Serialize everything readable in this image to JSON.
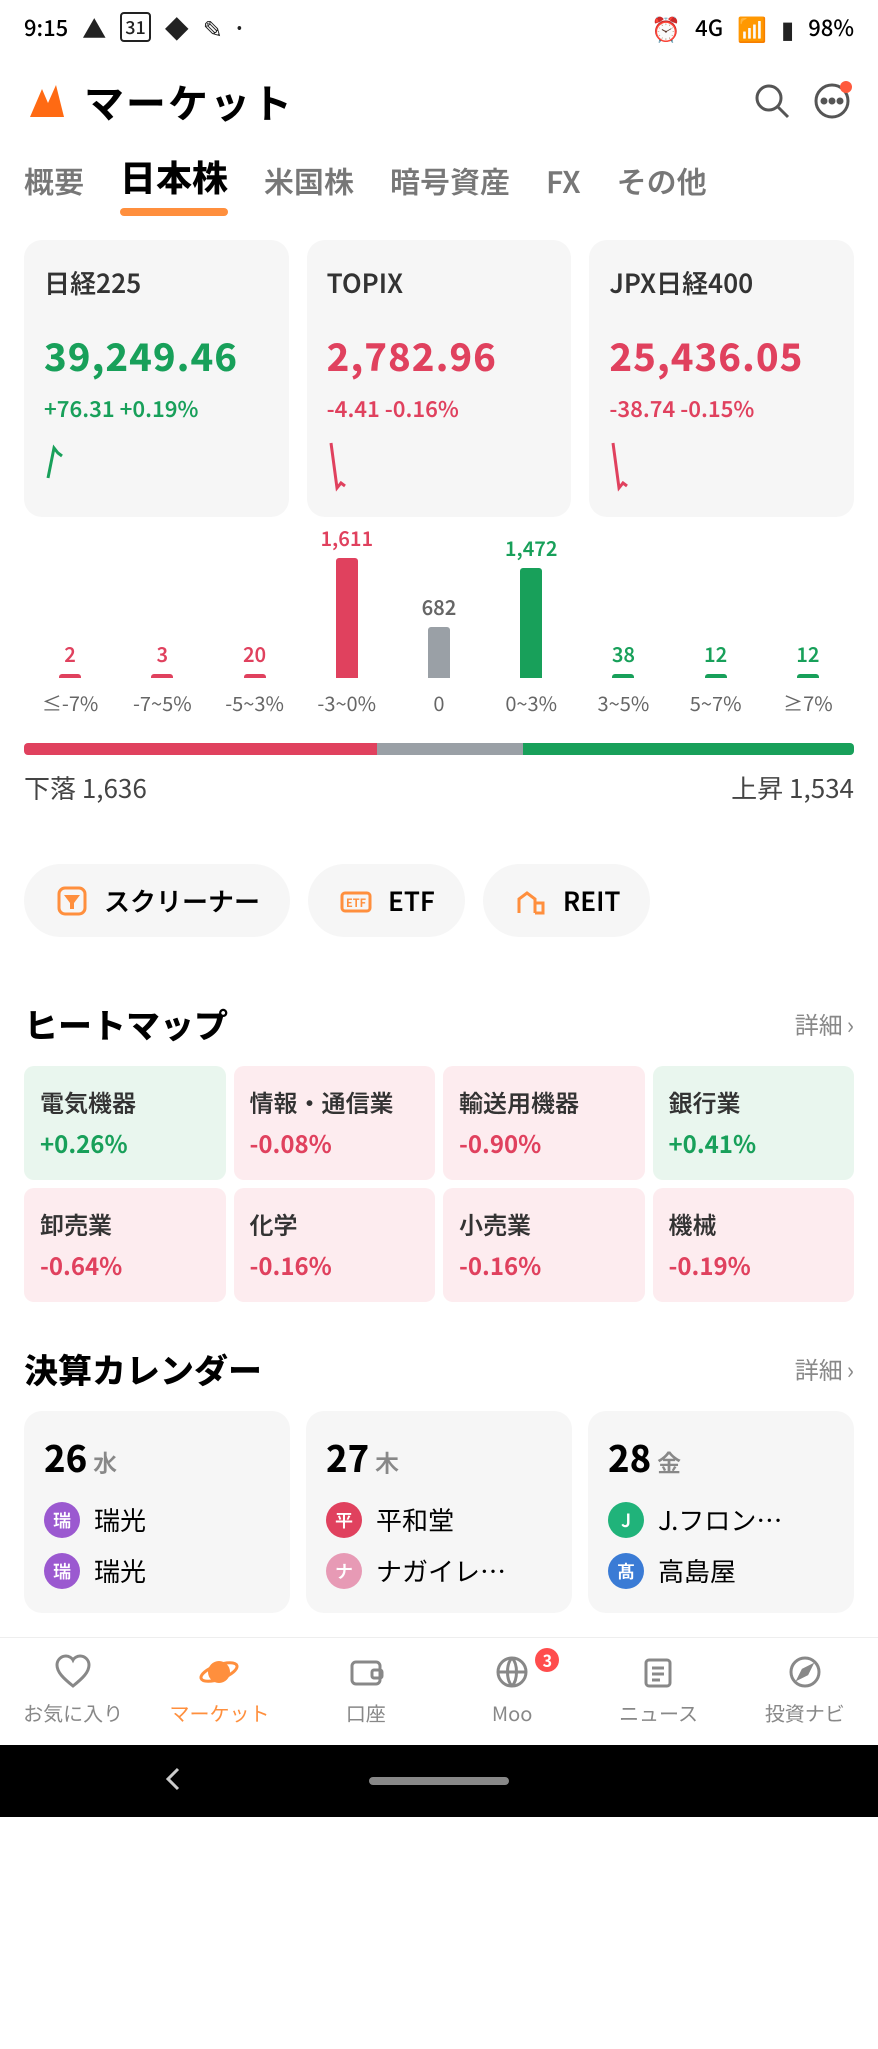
{
  "status": {
    "time": "9:15",
    "network": "4G",
    "battery": "98%",
    "icons_left": [
      "warning",
      "calendar-31",
      "cloud",
      "stylus",
      "dot"
    ],
    "icons_right": [
      "alarm"
    ]
  },
  "header": {
    "title": "マーケット",
    "logo_color": "#ff6a13",
    "has_notification_dot": true
  },
  "tabs": [
    {
      "label": "概要",
      "active": false
    },
    {
      "label": "日本株",
      "active": true
    },
    {
      "label": "米国株",
      "active": false
    },
    {
      "label": "暗号資産",
      "active": false
    },
    {
      "label": "FX",
      "active": false
    },
    {
      "label": "その他",
      "active": false
    }
  ],
  "indices": [
    {
      "name": "日経225",
      "value": "39,249.46",
      "delta": "+76.31 +0.19%",
      "dir": "up",
      "spark": [
        40,
        10,
        15,
        18
      ]
    },
    {
      "name": "TOPIX",
      "value": "2,782.96",
      "delta": "-4.41 -0.16%",
      "dir": "down",
      "spark": [
        5,
        50,
        45,
        48
      ]
    },
    {
      "name": "JPX日経400",
      "value": "25,436.05",
      "delta": "-38.74 -0.15%",
      "dir": "down",
      "spark": [
        5,
        50,
        45,
        48
      ]
    }
  ],
  "histogram": {
    "max": 1611,
    "down_color": "#e0415e",
    "neutral_color": "#9aa0a6",
    "up_color": "#18a05a",
    "bars": [
      {
        "label": "≤-7%",
        "value": 2,
        "cls": "down"
      },
      {
        "label": "-7~5%",
        "value": 3,
        "cls": "down"
      },
      {
        "label": "-5~3%",
        "value": 20,
        "cls": "down"
      },
      {
        "label": "-3~0%",
        "value": 1611,
        "cls": "down"
      },
      {
        "label": "0",
        "value": 682,
        "cls": "neutral"
      },
      {
        "label": "0~3%",
        "value": 1472,
        "cls": "up"
      },
      {
        "label": "3~5%",
        "value": 38,
        "cls": "up"
      },
      {
        "label": "5~7%",
        "value": 12,
        "cls": "up"
      },
      {
        "label": "≥7%",
        "value": 12,
        "cls": "up"
      }
    ],
    "ratio": {
      "down": 1636,
      "neutral": 682,
      "up": 1534,
      "total": 3852
    },
    "down_label": "下落 1,636",
    "up_label": "上昇 1,534"
  },
  "chips": [
    {
      "label": "スクリーナー",
      "icon": "filter"
    },
    {
      "label": "ETF",
      "icon": "etf"
    },
    {
      "label": "REIT",
      "icon": "reit"
    }
  ],
  "heatmap": {
    "title": "ヒートマップ",
    "detail_label": "詳細",
    "row1": [
      {
        "name": "電気機器",
        "val": "+0.26%",
        "dir": "up",
        "span": 1
      },
      {
        "name": "情報・通信業",
        "val": "-0.08%",
        "dir": "down",
        "span": 1
      },
      {
        "name": "輸送用機器",
        "val": "-0.90%",
        "dir": "down",
        "span": 1
      },
      {
        "name": "銀行業",
        "val": "+0.41%",
        "dir": "up",
        "span": 1
      }
    ],
    "row2": [
      {
        "name": "卸売業",
        "val": "-0.64%",
        "dir": "down"
      },
      {
        "name": "化学",
        "val": "-0.16%",
        "dir": "down"
      },
      {
        "name": "小売業",
        "val": "-0.16%",
        "dir": "down"
      },
      {
        "name": "機械",
        "val": "-0.19%",
        "dir": "down"
      }
    ]
  },
  "calendar": {
    "title": "決算カレンダー",
    "detail_label": "詳細",
    "days": [
      {
        "num": "26",
        "dow": "水",
        "items": [
          {
            "badge": "瑞",
            "color": "#9b59d0",
            "label": "瑞光"
          },
          {
            "badge": "瑞",
            "color": "#9b59d0",
            "label": "瑞光"
          }
        ]
      },
      {
        "num": "27",
        "dow": "木",
        "items": [
          {
            "badge": "平",
            "color": "#e0415e",
            "label": "平和堂"
          },
          {
            "badge": "ナ",
            "color": "#e79ab5",
            "label": "ナガイレー…"
          }
        ]
      },
      {
        "num": "28",
        "dow": "金",
        "items": [
          {
            "badge": "J",
            "color": "#20b37a",
            "label": "J.フロント …"
          },
          {
            "badge": "髙",
            "color": "#3a7bd5",
            "label": "高島屋"
          }
        ]
      }
    ]
  },
  "bottom_nav": [
    {
      "label": "お気に入り",
      "icon": "heart",
      "active": false
    },
    {
      "label": "マーケット",
      "icon": "planet",
      "active": true
    },
    {
      "label": "口座",
      "icon": "wallet",
      "active": false
    },
    {
      "label": "Moo",
      "icon": "globe",
      "active": false,
      "badge": "3"
    },
    {
      "label": "ニュース",
      "icon": "news",
      "active": false
    },
    {
      "label": "投資ナビ",
      "icon": "compass",
      "active": false
    }
  ],
  "colors": {
    "accent": "#ff8f3d",
    "up": "#18a05a",
    "down": "#e0415e",
    "neutral": "#9aa0a6",
    "card_bg": "#f6f6f6"
  }
}
